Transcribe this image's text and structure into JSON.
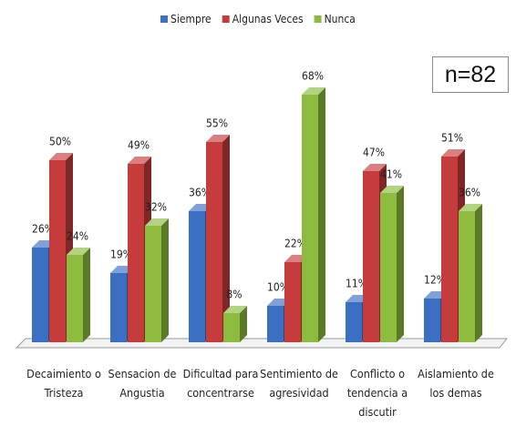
{
  "chart_data": {
    "type": "bar3d",
    "annotation": "n=82",
    "categories": [
      "Decaimiento o Tristeza",
      "Sensacion de Angustia",
      "Dificultad para concentrarse",
      "Sentimiento de agresividad",
      "Conflicto o tendencia a discutir",
      "Aislamiento de los demas"
    ],
    "series": [
      {
        "name": "Siempre",
        "color": "#3b6fc2",
        "values": [
          26,
          19,
          36,
          10,
          11,
          12
        ],
        "value_labels": [
          "26%",
          "19%",
          "36%",
          "10%",
          "11%",
          "12%"
        ]
      },
      {
        "name": "Algunas Veces",
        "color": "#c63b3b",
        "values": [
          50,
          49,
          55,
          22,
          47,
          51
        ],
        "value_labels": [
          "50%",
          "49%",
          "55%",
          "22%",
          "47%",
          "51%"
        ]
      },
      {
        "name": "Nunca",
        "color": "#8cbb3e",
        "values": [
          24,
          32,
          8,
          68,
          41,
          36
        ],
        "value_labels": [
          "24%",
          "32%",
          "8%",
          "68%",
          "41%",
          "36%"
        ]
      }
    ],
    "legend": "top"
  }
}
